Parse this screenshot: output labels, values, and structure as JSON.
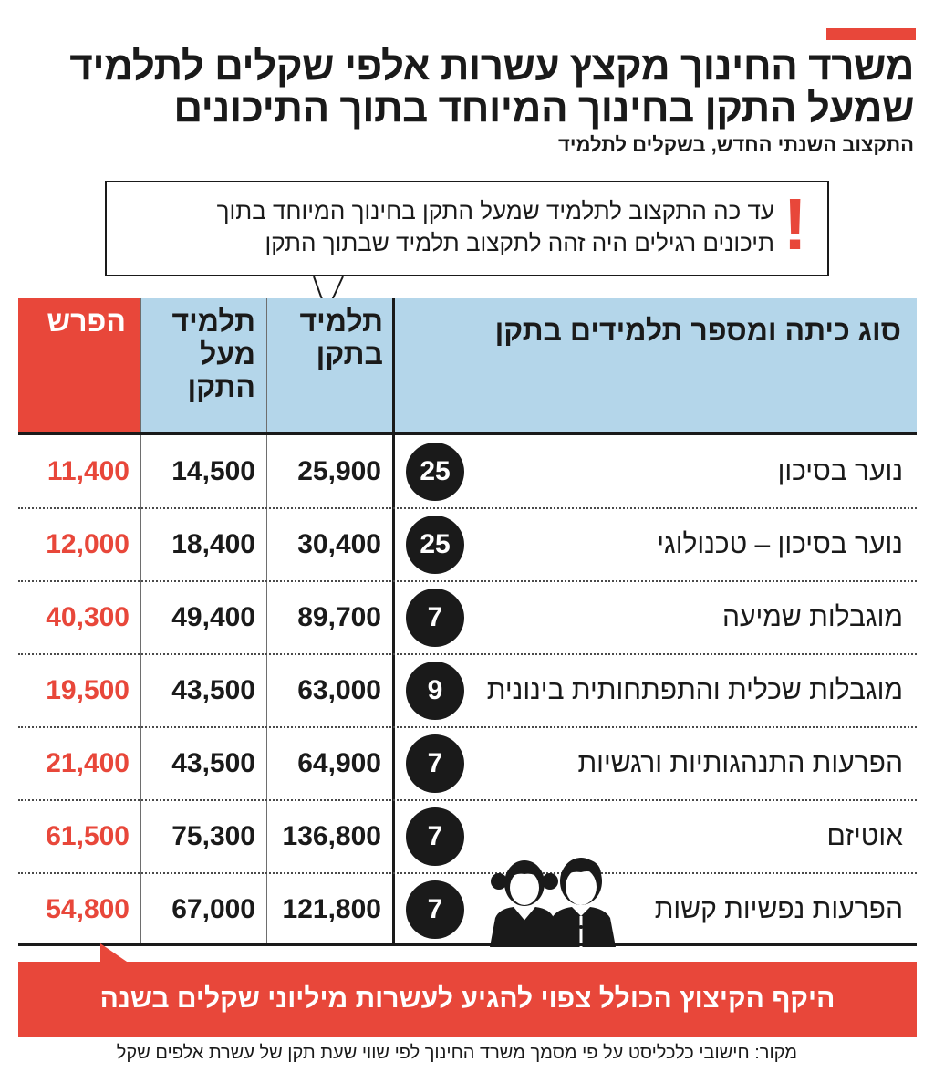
{
  "title_line1": "משרד החינוך מקצץ עשרות אלפי שקלים לתלמיד",
  "title_line2": "שמעל התקן בחינוך המיוחד בתוך התיכונים",
  "subtitle": "התקצוב השנתי החדש, בשקלים לתלמיד",
  "callout_line1": "עד כה התקצוב לתלמיד שמעל התקן בחינוך המיוחד בתוך",
  "callout_line2": "תיכונים רגילים היה זהה לתקצוב תלמיד שבתוך התקן",
  "callout_mark": "!",
  "chart_data": {
    "type": "table",
    "columns": {
      "type": "סוג כיתה ומספר תלמידים בתקן",
      "in_standard": [
        "תלמיד",
        "בתקן"
      ],
      "over_standard": [
        "תלמיד",
        "מעל",
        "התקן"
      ],
      "difference": "הפרש"
    },
    "rows": [
      {
        "label": "נוער בסיכון",
        "students": "25",
        "in_standard": "25,900",
        "over_standard": "14,500",
        "difference": "11,400"
      },
      {
        "label": "נוער בסיכון – טכנולוגי",
        "students": "25",
        "in_standard": "30,400",
        "over_standard": "18,400",
        "difference": "12,000"
      },
      {
        "label": "מוגבלות שמיעה",
        "students": "7",
        "in_standard": "89,700",
        "over_standard": "49,400",
        "difference": "40,300"
      },
      {
        "label": "מוגבלות שכלית והתפתחותית בינונית",
        "students": "9",
        "in_standard": "63,000",
        "over_standard": "43,500",
        "difference": "19,500"
      },
      {
        "label": "הפרעות התנהגותיות ורגשיות",
        "students": "7",
        "in_standard": "64,900",
        "over_standard": "43,500",
        "difference": "21,400"
      },
      {
        "label": "אוטיזם",
        "students": "7",
        "in_standard": "136,800",
        "over_standard": "75,300",
        "difference": "61,500"
      },
      {
        "label": "הפרעות נפשיות קשות",
        "students": "7",
        "in_standard": "121,800",
        "over_standard": "67,000",
        "difference": "54,800"
      }
    ]
  },
  "banner": "היקף הקיצוץ הכולל צפוי להגיע לעשרות מיליוני שקלים בשנה",
  "source": "מקור: חישובי כלכליסט על פי מסמך משרד החינוך לפי שווי שעת תקן של עשרת אלפים שקל",
  "colors": {
    "accent": "#e8473a",
    "header_blue": "#b4d6ea",
    "ink": "#1a1a1a"
  },
  "icons": {
    "callout": "exclamation-icon",
    "illustration": "students-illustration-icon"
  }
}
